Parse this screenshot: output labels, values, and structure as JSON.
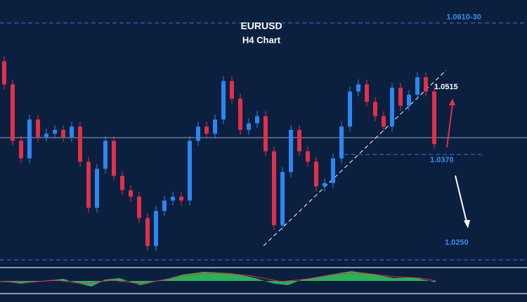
{
  "chart_data": {
    "type": "candlestick",
    "title": "EURUSD",
    "subtitle": "H4 Chart",
    "up_color": "#2e86f0",
    "down_color": "#e0304a",
    "ylim": [
      1.0165,
      1.0652
    ],
    "open": [
      1.054,
      1.0498,
      1.0395,
      1.0363,
      1.0434,
      1.0402,
      1.0408,
      1.0415,
      1.0402,
      1.0421,
      1.0357,
      1.0273,
      1.0344,
      1.0395,
      1.0331,
      1.0305,
      1.0293,
      1.0254,
      1.0203,
      1.0267,
      1.0286,
      1.0293,
      1.0286,
      1.0395,
      1.0421,
      1.0408,
      1.0434,
      1.0504,
      1.0472,
      1.0415,
      1.0427,
      1.044,
      1.0376,
      1.0241,
      1.0338,
      1.0415,
      1.0376,
      1.0357,
      1.0312,
      1.0318,
      1.0363,
      1.0421,
      1.0485,
      1.0498,
      1.0466,
      1.044,
      1.0421,
      1.0492,
      1.0459,
      1.0479,
      1.0511,
      1.0485
    ],
    "high": [
      1.0549,
      1.0507,
      1.0404,
      1.0443,
      1.0443,
      1.0417,
      1.0424,
      1.0424,
      1.043,
      1.043,
      1.0366,
      1.0353,
      1.0404,
      1.0404,
      1.034,
      1.0314,
      1.0302,
      1.0263,
      1.0276,
      1.0295,
      1.0302,
      1.0302,
      1.0404,
      1.043,
      1.043,
      1.0443,
      1.0513,
      1.0513,
      1.0481,
      1.0436,
      1.0449,
      1.0449,
      1.0385,
      1.0347,
      1.0424,
      1.0424,
      1.0385,
      1.0366,
      1.0327,
      1.0372,
      1.043,
      1.0494,
      1.0507,
      1.0507,
      1.0475,
      1.0449,
      1.0501,
      1.0501,
      1.0488,
      1.052,
      1.052,
      1.0494
    ],
    "low": [
      1.0489,
      1.0386,
      1.0354,
      1.0354,
      1.0393,
      1.0393,
      1.0399,
      1.0393,
      1.0393,
      1.0348,
      1.0264,
      1.0264,
      1.0335,
      1.0322,
      1.0296,
      1.0284,
      1.0245,
      1.0194,
      1.0194,
      1.0258,
      1.0277,
      1.0277,
      1.0277,
      1.0386,
      1.0399,
      1.0399,
      1.0425,
      1.0463,
      1.0406,
      1.0406,
      1.0418,
      1.0367,
      1.0232,
      1.0232,
      1.0329,
      1.0367,
      1.0348,
      1.0303,
      1.0303,
      1.0309,
      1.0354,
      1.0412,
      1.0476,
      1.0457,
      1.0431,
      1.0412,
      1.0412,
      1.045,
      1.045,
      1.047,
      1.0476,
      1.038
    ],
    "close": [
      1.0498,
      1.0395,
      1.0363,
      1.0434,
      1.0402,
      1.0408,
      1.0415,
      1.0402,
      1.0421,
      1.0357,
      1.0273,
      1.0344,
      1.0395,
      1.0331,
      1.0305,
      1.0293,
      1.0254,
      1.0203,
      1.0267,
      1.0286,
      1.0293,
      1.0286,
      1.0395,
      1.0421,
      1.0408,
      1.0434,
      1.0504,
      1.0472,
      1.0415,
      1.0427,
      1.044,
      1.0376,
      1.0241,
      1.0338,
      1.0415,
      1.0376,
      1.0357,
      1.0312,
      1.0318,
      1.0363,
      1.0421,
      1.0485,
      1.0498,
      1.0466,
      1.044,
      1.0421,
      1.0492,
      1.0459,
      1.0479,
      1.0511,
      1.0485,
      1.0389
    ],
    "levels": [
      {
        "value": 1.061,
        "label": "1.0610-30"
      },
      {
        "value": 1.0515,
        "label": "1.0515"
      },
      {
        "value": 1.037,
        "label": "1.0370"
      },
      {
        "value": 1.025,
        "label": "1.0250"
      }
    ]
  }
}
